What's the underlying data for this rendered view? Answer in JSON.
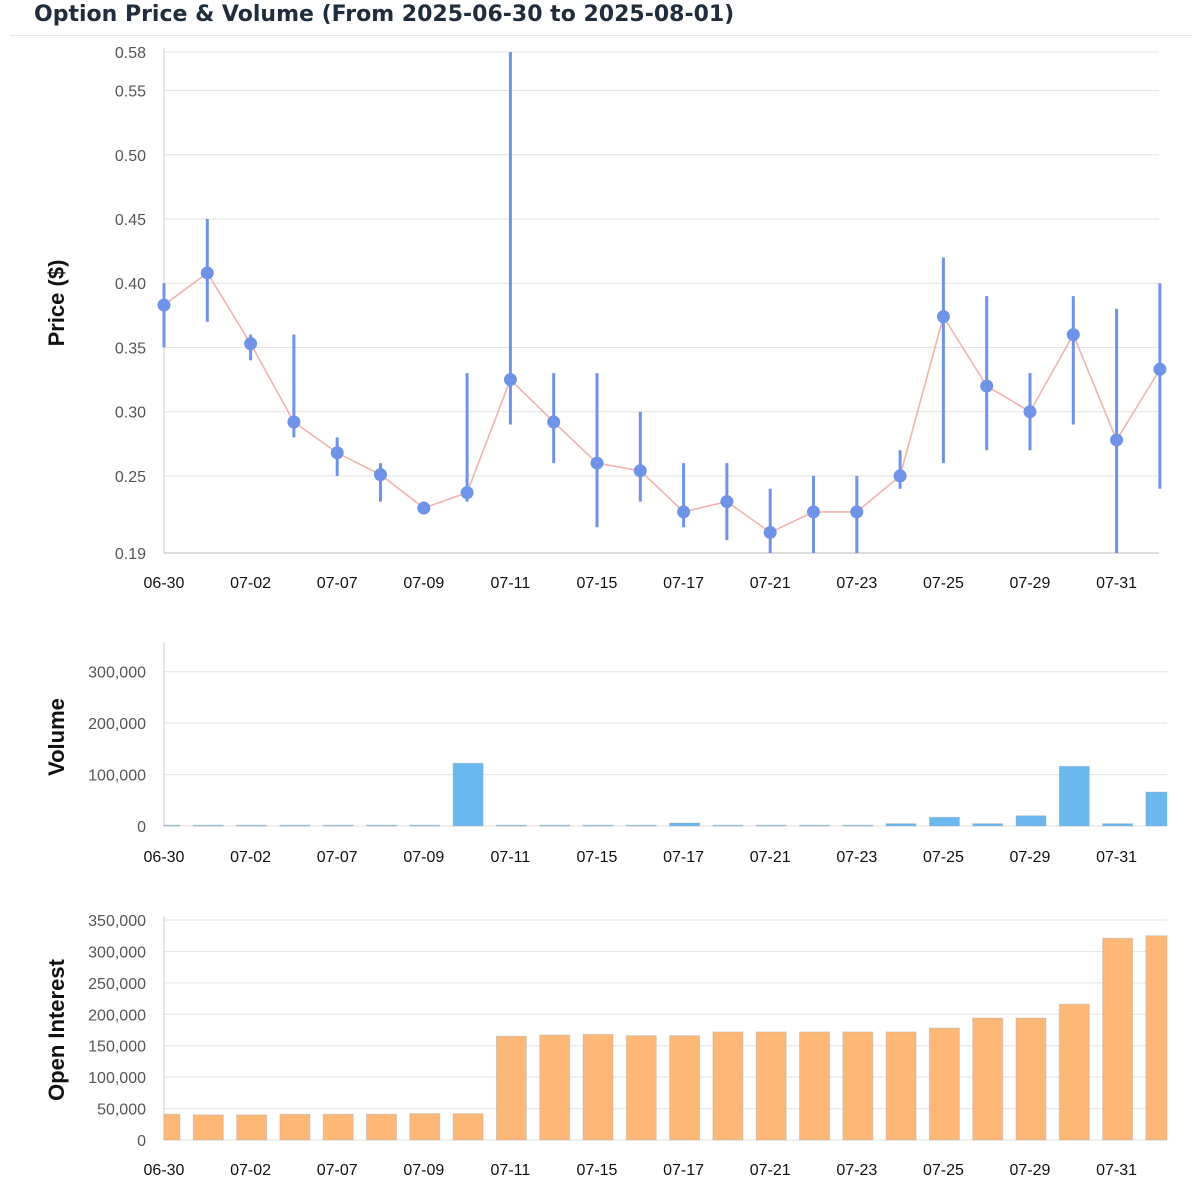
{
  "title": "Option Price & Volume (From 2025-06-30 to 2025-08-01)",
  "colors": {
    "price_point": "#6f93e6",
    "price_line": "#f2b3ae",
    "volume_bar": "#6ab8ee",
    "oi_bar": "#fdb878",
    "grid": "#e3e3e3"
  },
  "chart_data": [
    {
      "type": "line",
      "name": "price",
      "ylabel": "Price ($)",
      "ylim": [
        0.19,
        0.58
      ],
      "y_ticks": [
        "0.58",
        "0.55",
        "0.50",
        "0.45",
        "0.40",
        "0.35",
        "0.30",
        "0.25",
        "0.19"
      ],
      "x_tick_labels": [
        "06-30",
        "07-02",
        "07-07",
        "07-09",
        "07-11",
        "07-15",
        "07-17",
        "07-21",
        "07-23",
        "07-25",
        "07-29",
        "07-31"
      ],
      "points": [
        {
          "close": 0.383,
          "low": 0.35,
          "high": 0.4
        },
        {
          "close": 0.408,
          "low": 0.37,
          "high": 0.45
        },
        {
          "close": 0.353,
          "low": 0.34,
          "high": 0.36
        },
        {
          "close": 0.292,
          "low": 0.28,
          "high": 0.36
        },
        {
          "close": 0.268,
          "low": 0.25,
          "high": 0.28
        },
        {
          "close": 0.251,
          "low": 0.23,
          "high": 0.26
        },
        {
          "close": 0.225,
          "low": 0.225,
          "high": 0.225
        },
        {
          "close": 0.237,
          "low": 0.23,
          "high": 0.33
        },
        {
          "close": 0.325,
          "low": 0.29,
          "high": 0.58
        },
        {
          "close": 0.292,
          "low": 0.26,
          "high": 0.33
        },
        {
          "close": 0.26,
          "low": 0.21,
          "high": 0.33
        },
        {
          "close": 0.254,
          "low": 0.23,
          "high": 0.3
        },
        {
          "close": 0.222,
          "low": 0.21,
          "high": 0.26
        },
        {
          "close": 0.23,
          "low": 0.2,
          "high": 0.26
        },
        {
          "close": 0.206,
          "low": 0.19,
          "high": 0.24
        },
        {
          "close": 0.222,
          "low": 0.19,
          "high": 0.25
        },
        {
          "close": 0.222,
          "low": 0.19,
          "high": 0.25
        },
        {
          "close": 0.25,
          "low": 0.24,
          "high": 0.27
        },
        {
          "close": 0.374,
          "low": 0.26,
          "high": 0.42
        },
        {
          "close": 0.32,
          "low": 0.27,
          "high": 0.39
        },
        {
          "close": 0.3,
          "low": 0.27,
          "high": 0.33
        },
        {
          "close": 0.36,
          "low": 0.29,
          "high": 0.39
        },
        {
          "close": 0.278,
          "low": 0.19,
          "high": 0.38
        },
        {
          "close": 0.333,
          "low": 0.24,
          "high": 0.4
        }
      ]
    },
    {
      "type": "bar",
      "name": "volume",
      "ylabel": "Volume",
      "ylim": [
        0,
        350000
      ],
      "y_ticks": [
        "300,000",
        "200,000",
        "100,000",
        "0"
      ],
      "x_tick_labels": [
        "06-30",
        "07-02",
        "07-07",
        "07-09",
        "07-11",
        "07-15",
        "07-17",
        "07-21",
        "07-23",
        "07-25",
        "07-29",
        "07-31"
      ],
      "values": [
        400,
        900,
        500,
        700,
        300,
        500,
        400,
        122000,
        1500,
        200,
        1200,
        300,
        5800,
        500,
        900,
        300,
        700,
        4500,
        17000,
        4500,
        20000,
        116000,
        4500,
        66000
      ]
    },
    {
      "type": "bar",
      "name": "open_interest",
      "ylabel": "Open Interest",
      "ylim": [
        0,
        350000
      ],
      "y_ticks": [
        "350,000",
        "300,000",
        "250,000",
        "200,000",
        "150,000",
        "100,000",
        "50,000",
        "0"
      ],
      "x_tick_labels": [
        "06-30",
        "07-02",
        "07-07",
        "07-09",
        "07-11",
        "07-15",
        "07-17",
        "07-21",
        "07-23",
        "07-25",
        "07-29",
        "07-31"
      ],
      "values": [
        41000,
        40000,
        40000,
        41000,
        41000,
        41000,
        42000,
        42000,
        165000,
        167000,
        168000,
        166000,
        166000,
        172000,
        172000,
        172000,
        172000,
        172000,
        178000,
        194000,
        194000,
        216000,
        321000,
        325000
      ]
    }
  ]
}
